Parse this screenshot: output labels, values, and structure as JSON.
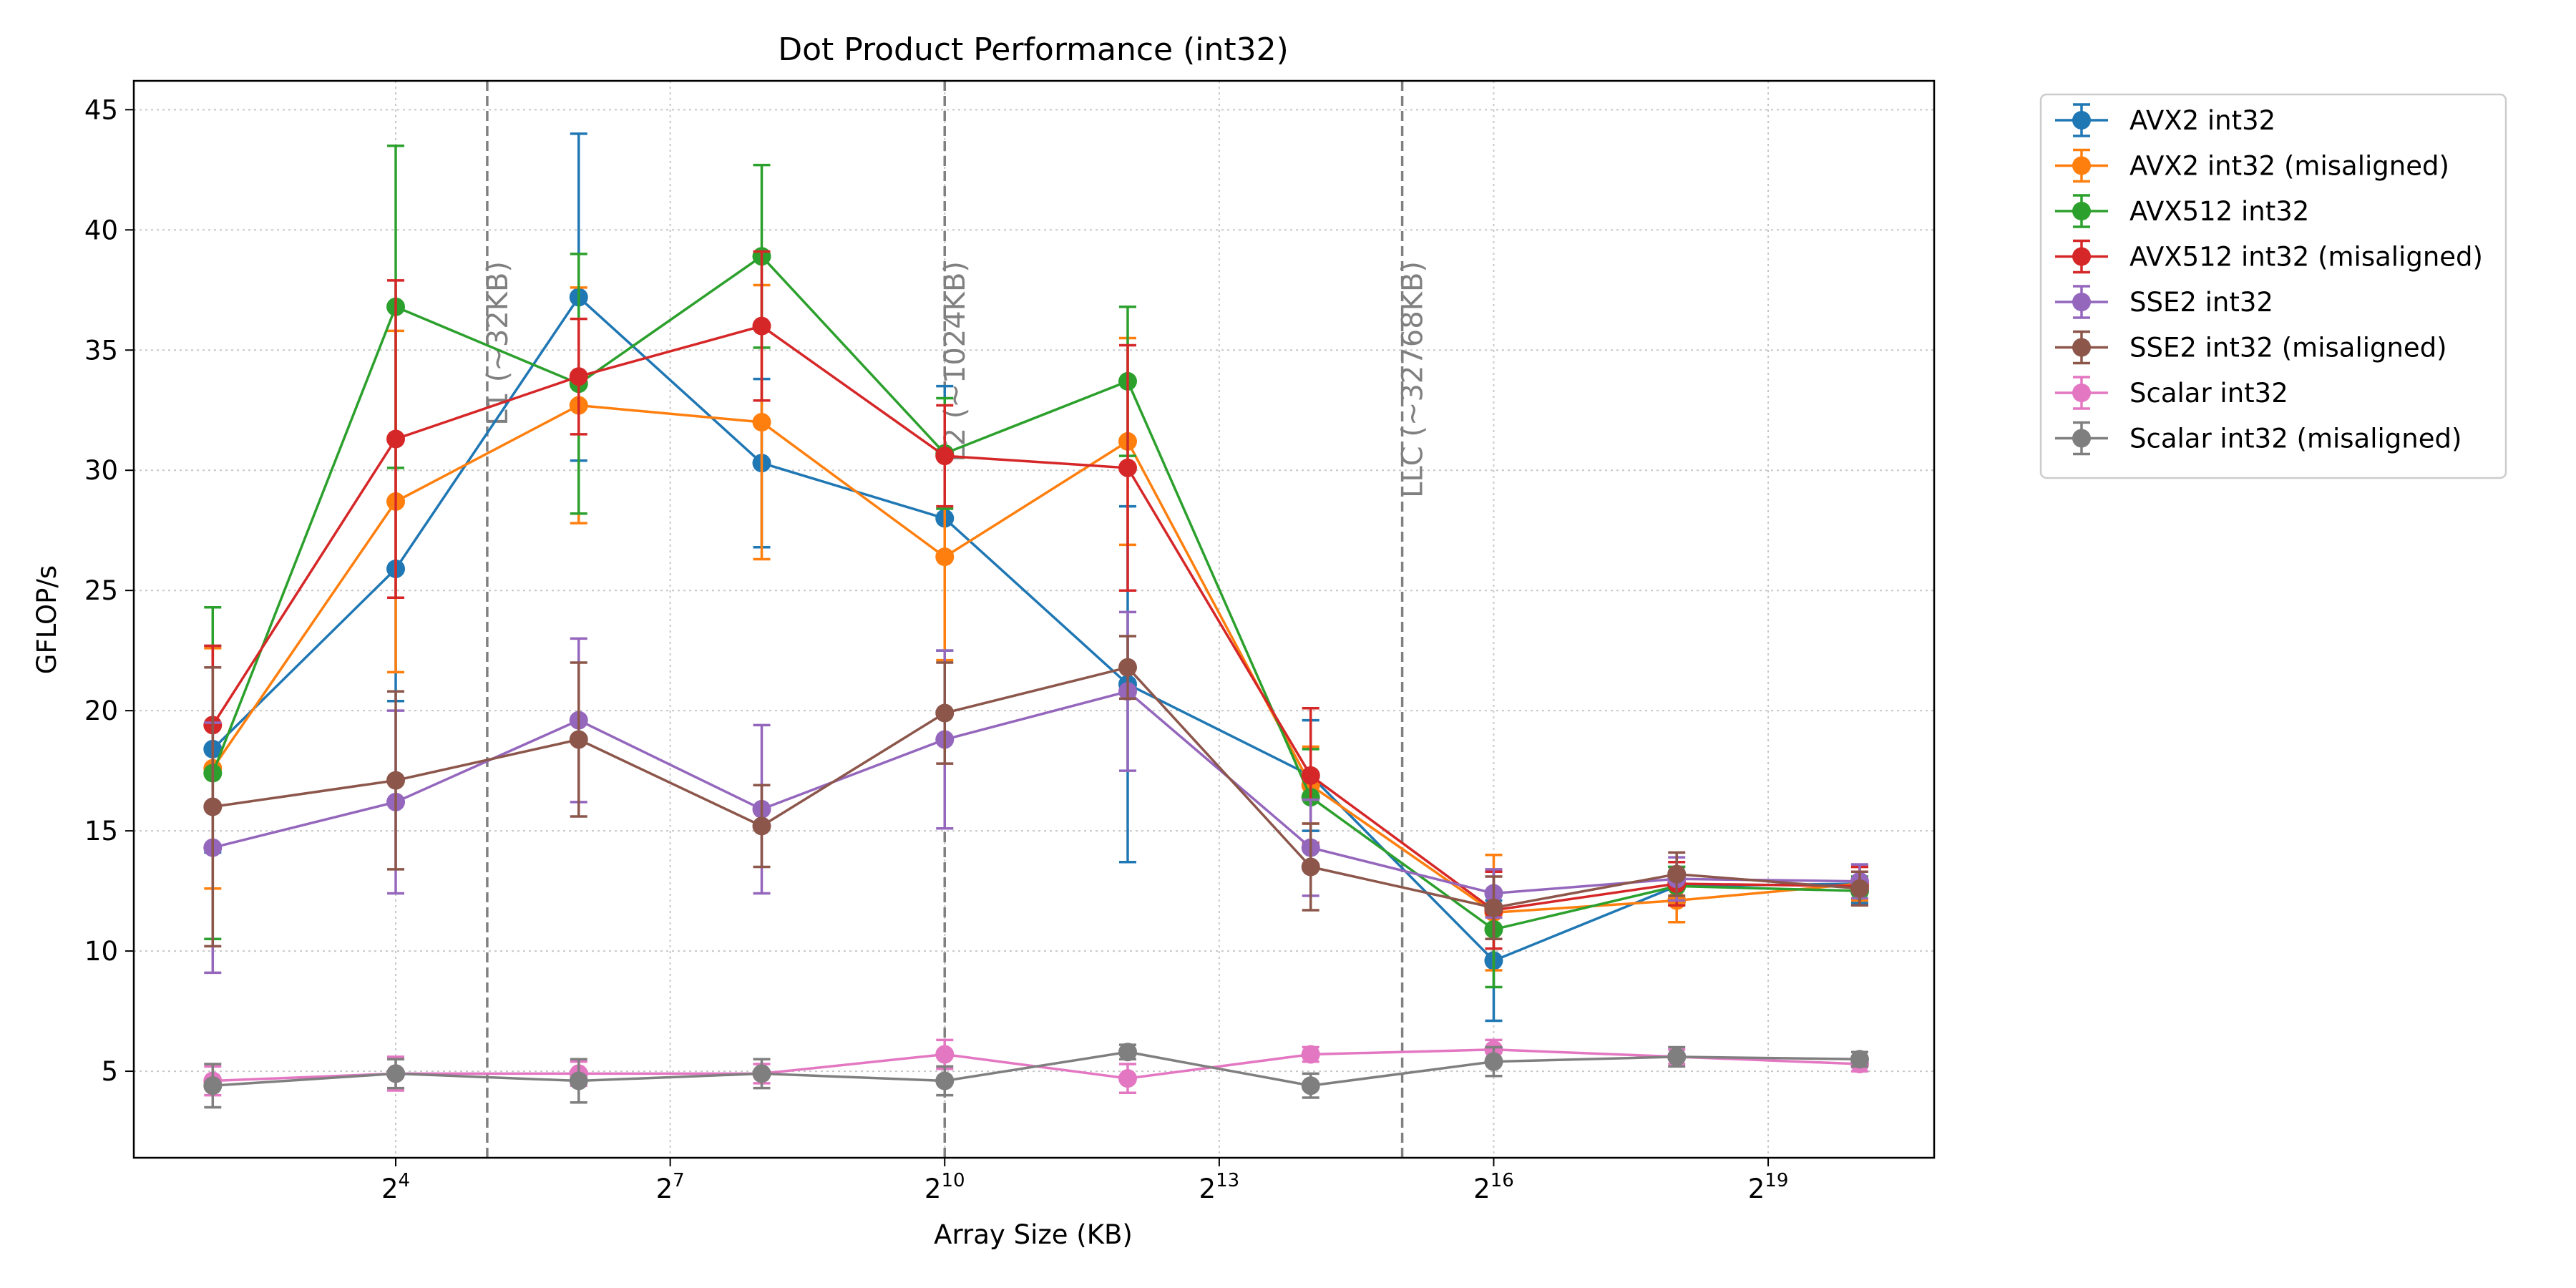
{
  "chart_data": {
    "type": "line",
    "title": "Dot Product Performance (int32)",
    "xlabel": "Array Size (KB)",
    "ylabel": "GFLOP/s",
    "xscale": "log2",
    "xlim": [
      2.2,
      1843200
    ],
    "ylim": [
      1.4,
      46.2
    ],
    "x_ticks": [
      {
        "base": "2",
        "exp": "4",
        "value": 16
      },
      {
        "base": "2",
        "exp": "7",
        "value": 128
      },
      {
        "base": "2",
        "exp": "10",
        "value": 1024
      },
      {
        "base": "2",
        "exp": "13",
        "value": 8192
      },
      {
        "base": "2",
        "exp": "16",
        "value": 65536
      },
      {
        "base": "2",
        "exp": "19",
        "value": 524288
      }
    ],
    "y_ticks": [
      5,
      10,
      15,
      20,
      25,
      30,
      35,
      40,
      45
    ],
    "grid": true,
    "legend_position": "outside-right",
    "x": [
      4,
      16,
      64,
      256,
      1024,
      4096,
      16384,
      65536,
      262144,
      1048576
    ],
    "vlines": [
      {
        "x": 32,
        "label": "L1 (~32KB)"
      },
      {
        "x": 1024,
        "label": "L2 (~1024KB)"
      },
      {
        "x": 32768,
        "label": "LLC (~32768KB)"
      }
    ],
    "series": [
      {
        "name": "AVX2 int32",
        "color": "#1f77b4",
        "values": [
          18.4,
          25.9,
          37.2,
          30.3,
          28.0,
          21.1,
          17.3,
          9.6,
          12.7,
          12.8
        ],
        "errors": [
          4.3,
          5.5,
          6.8,
          3.5,
          5.5,
          7.4,
          2.3,
          2.5,
          0.8,
          0.8
        ]
      },
      {
        "name": "AVX2 int32 (misaligned)",
        "color": "#ff7f0e",
        "values": [
          17.6,
          28.7,
          32.7,
          32.0,
          26.4,
          31.2,
          16.9,
          11.6,
          12.1,
          12.8
        ],
        "errors": [
          5.0,
          7.1,
          4.9,
          5.7,
          4.3,
          4.3,
          1.6,
          2.4,
          0.9,
          0.7
        ]
      },
      {
        "name": "AVX512 int32",
        "color": "#2ca02c",
        "values": [
          17.4,
          36.8,
          33.6,
          38.9,
          30.7,
          33.7,
          16.4,
          10.9,
          12.7,
          12.5
        ],
        "errors": [
          6.9,
          6.7,
          5.4,
          3.8,
          2.3,
          3.1,
          2.0,
          2.4,
          0.8,
          0.6
        ]
      },
      {
        "name": "AVX512 int32 (misaligned)",
        "color": "#d62728",
        "values": [
          19.4,
          31.3,
          33.9,
          36.0,
          30.6,
          30.1,
          17.3,
          11.7,
          12.8,
          12.7
        ],
        "errors": [
          3.3,
          6.6,
          2.4,
          3.1,
          2.1,
          5.1,
          2.8,
          1.6,
          0.9,
          0.8
        ]
      },
      {
        "name": "SSE2 int32",
        "color": "#9467bd",
        "values": [
          14.3,
          16.2,
          19.6,
          15.9,
          18.8,
          20.8,
          14.3,
          12.4,
          13.0,
          12.9
        ],
        "errors": [
          5.2,
          3.8,
          3.4,
          3.5,
          3.7,
          3.3,
          2.0,
          1.0,
          0.9,
          0.7
        ]
      },
      {
        "name": "SSE2 int32 (misaligned)",
        "color": "#8c564b",
        "values": [
          16.0,
          17.1,
          18.8,
          15.2,
          19.9,
          21.8,
          13.5,
          11.8,
          13.2,
          12.6
        ],
        "errors": [
          5.8,
          3.7,
          3.2,
          1.7,
          2.1,
          1.3,
          1.8,
          1.3,
          0.9,
          0.7
        ]
      },
      {
        "name": "Scalar int32",
        "color": "#e377c2",
        "values": [
          4.6,
          4.9,
          4.9,
          4.9,
          5.7,
          4.7,
          5.7,
          5.9,
          5.6,
          5.3
        ],
        "errors": [
          0.6,
          0.7,
          0.5,
          0.4,
          0.6,
          0.6,
          0.3,
          0.4,
          0.3,
          0.3
        ]
      },
      {
        "name": "Scalar int32 (misaligned)",
        "color": "#7f7f7f",
        "values": [
          4.4,
          4.9,
          4.6,
          4.9,
          4.6,
          5.8,
          4.4,
          5.4,
          5.6,
          5.5
        ],
        "errors": [
          0.9,
          0.6,
          0.9,
          0.6,
          0.6,
          0.3,
          0.5,
          0.6,
          0.4,
          0.3
        ]
      }
    ]
  }
}
